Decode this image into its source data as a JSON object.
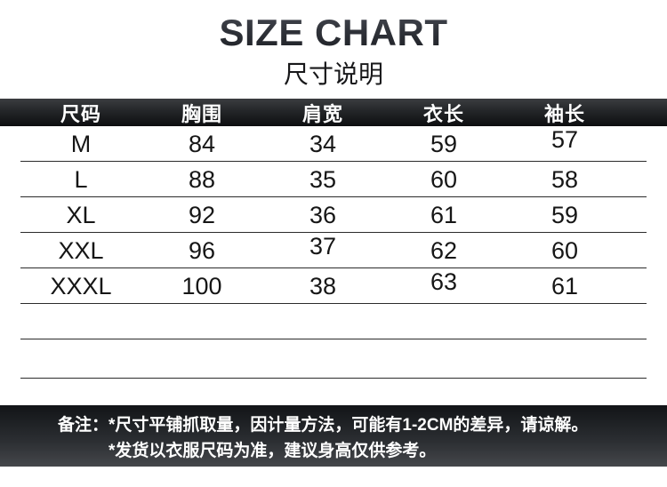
{
  "title": "SIZE CHART",
  "subtitle": "尺寸说明",
  "table": {
    "columns": [
      "尺码",
      "胸围",
      "肩宽",
      "衣长",
      "袖长"
    ],
    "rows": [
      [
        "M",
        "84",
        "34",
        "59",
        "57"
      ],
      [
        "L",
        "88",
        "35",
        "60",
        "58"
      ],
      [
        "XL",
        "92",
        "36",
        "61",
        "59"
      ],
      [
        "XXL",
        "96",
        "37",
        "62",
        "60"
      ],
      [
        "XXXL",
        "100",
        "38",
        "63",
        "61"
      ]
    ],
    "empty_rows": 2
  },
  "notes": {
    "label": "备注：",
    "line1": "*尺寸平铺抓取量，因计量方法，可能有1-2CM的差异，请谅解。",
    "line2": "*发货以衣服尺码为准，建议身高仅供参考。"
  },
  "colors": {
    "header_bar_top": "#3b3d40",
    "header_bar_bottom": "#0d0e10",
    "note_bar_top": "#121417",
    "note_bar_bottom": "#45474b",
    "bar_text": "#ffffff",
    "cell_text": "#161616",
    "line_color": "#2b2b2b"
  }
}
